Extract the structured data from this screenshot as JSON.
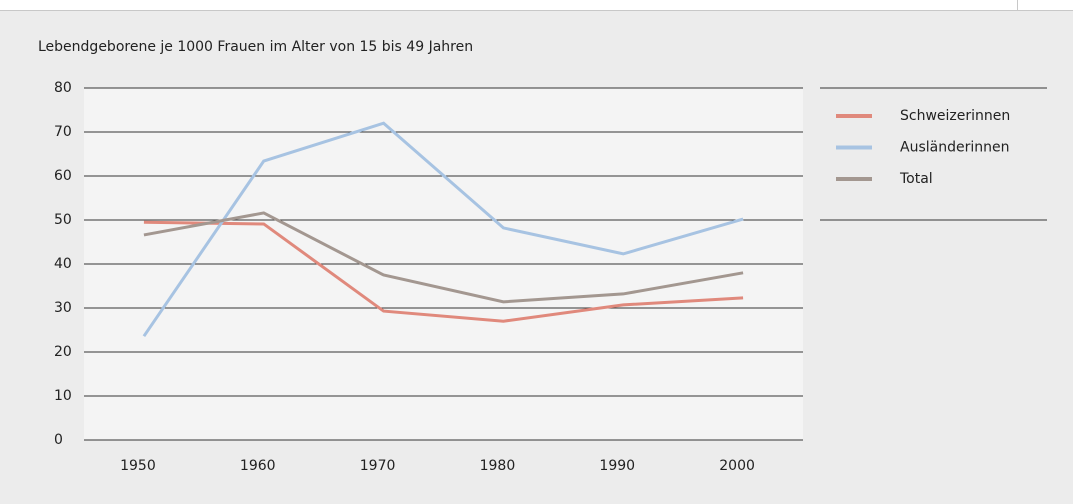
{
  "chart_data": {
    "type": "line",
    "subtitle": "Lebendgeborene je 1000 Frauen im Alter von 15 bis 49 Jahren",
    "categories": [
      "1950",
      "1960",
      "1970",
      "1980",
      "1990",
      "2000"
    ],
    "series": [
      {
        "name": "Schweizerinnen",
        "color": "#e0897c",
        "values": [
          49.5,
          49.1,
          29.3,
          27.0,
          30.7,
          32.3
        ]
      },
      {
        "name": "Ausländerinnen",
        "color": "#a7c3e2",
        "values": [
          23.6,
          63.4,
          72.0,
          48.2,
          42.3,
          50.2
        ]
      },
      {
        "name": "Total",
        "color": "#a39790",
        "values": [
          46.6,
          51.6,
          37.5,
          31.4,
          33.2,
          38.0
        ]
      }
    ],
    "ylim": [
      0,
      80
    ],
    "yticks": [
      0,
      10,
      20,
      30,
      40,
      50,
      60,
      70,
      80
    ],
    "grid": true,
    "legend": "right"
  }
}
